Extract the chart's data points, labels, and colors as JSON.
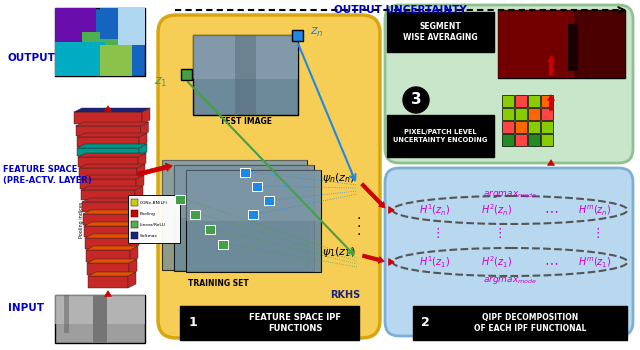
{
  "bg_color": "#ffffff",
  "title_text": "OUTPUT UNCERTAINTY",
  "title_color": "#0000cc",
  "box1_bg": "#f5c842",
  "box1_label_num": "1",
  "box1_label_text": "FEATURE SPACE IPF\nFUNCTIONS",
  "box2_bg": "#b8d8f0",
  "box2_label_num": "2",
  "box2_label_text": "QIPF DECOMPOSITION\nOF EACH IPF FUNCTIONAL",
  "box3_bg": "#c8e6c9",
  "box3_label_num": "3",
  "arrow_color": "#cc0000",
  "text_blue": "#0000cc",
  "text_purple": "#cc00cc",
  "output_label": "OUTPUT",
  "input_label": "INPUT",
  "feature_label": "FEATURE SPACE\n(PRE-ACTV. LAYER)",
  "seg_avg_label": "SEGMENT\nWISE AVERAGING",
  "pixel_enc_label": "PIXEL/PATCH LEVEL\nUNCERTAINTY ENCODING",
  "rkhs_label": "RKHS",
  "test_image_label": "TEST IMAGE",
  "training_set_label": "TRAINING SET",
  "layer_colors_blue": [
    "#1a237e",
    "#c62828",
    "#c62828",
    "#009688",
    "#c62828",
    "#c62828"
  ],
  "layer_colors_orange": [
    "#c62828",
    "#e65100",
    "#e65100",
    "#e65100",
    "#e65100",
    "#e65100",
    "#e65100",
    "#e65100"
  ],
  "grid_colors": [
    [
      "#88cc00",
      "#ff4444",
      "#88cc00",
      "#ff6600"
    ],
    [
      "#88cc00",
      "#88cc00",
      "#ff6600",
      "#ff4444"
    ],
    [
      "#ff4444",
      "#ff6600",
      "#88cc00",
      "#88cc00"
    ],
    [
      "#228b22",
      "#ff4444",
      "#228b22",
      "#88cc00"
    ]
  ]
}
